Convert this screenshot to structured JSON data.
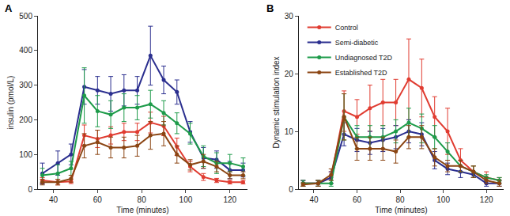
{
  "chart_data": [
    {
      "type": "line",
      "title": "A",
      "x_label": "Time (minutes)",
      "y_label": "insulin (pmol/L)",
      "x": [
        35,
        42,
        48,
        54,
        60,
        66,
        72,
        78,
        84,
        90,
        96,
        102,
        108,
        114,
        120,
        126
      ],
      "xlim": [
        33,
        128
      ],
      "xticks": [
        40,
        60,
        80,
        100,
        120
      ],
      "ylim": [
        0,
        500
      ],
      "yticks": [
        0,
        100,
        200,
        300,
        400,
        500
      ],
      "grid": false,
      "marker": "circle",
      "series": [
        {
          "color": "#e03c31",
          "values": [
            25,
            20,
            22,
            155,
            145,
            155,
            165,
            165,
            192,
            182,
            122,
            65,
            35,
            25,
            20,
            20
          ],
          "error": [
            8,
            8,
            6,
            30,
            25,
            25,
            25,
            25,
            30,
            28,
            25,
            15,
            10,
            6,
            5,
            5
          ]
        },
        {
          "color": "#2b2f8f",
          "values": [
            45,
            75,
            100,
            295,
            285,
            275,
            285,
            285,
            385,
            315,
            280,
            165,
            90,
            85,
            55,
            55
          ],
          "error": [
            30,
            35,
            30,
            50,
            40,
            50,
            45,
            40,
            85,
            40,
            35,
            30,
            30,
            25,
            25,
            20
          ]
        },
        {
          "color": "#1e9b4a",
          "values": [
            40,
            45,
            60,
            270,
            225,
            215,
            235,
            235,
            245,
            220,
            190,
            160,
            95,
            75,
            75,
            65
          ],
          "error": [
            20,
            25,
            20,
            80,
            45,
            40,
            40,
            35,
            40,
            35,
            30,
            30,
            30,
            30,
            25,
            25
          ]
        },
        {
          "color": "#8b4513",
          "values": [
            20,
            20,
            30,
            125,
            135,
            120,
            120,
            125,
            155,
            160,
            100,
            70,
            80,
            65,
            40,
            40
          ],
          "error": [
            8,
            8,
            10,
            35,
            35,
            30,
            30,
            30,
            40,
            35,
            25,
            15,
            20,
            15,
            10,
            10
          ]
        }
      ]
    },
    {
      "type": "line",
      "title": "B",
      "x_label": "Time (minutes)",
      "y_label": "Dynamic stimulation index",
      "x": [
        35,
        42,
        48,
        54,
        60,
        66,
        72,
        78,
        84,
        90,
        96,
        102,
        108,
        114,
        120,
        126
      ],
      "xlim": [
        33,
        128
      ],
      "xticks": [
        40,
        60,
        80,
        100,
        120
      ],
      "ylim": [
        0,
        30
      ],
      "yticks": [
        0,
        10,
        20,
        30
      ],
      "grid": false,
      "marker": "circle",
      "legend": "top left",
      "series": [
        {
          "name": "Control",
          "color": "#e03c31",
          "values": [
            1,
            1,
            2,
            13.5,
            12.5,
            14,
            15,
            15,
            19,
            17.5,
            12.5,
            10,
            5,
            3,
            2,
            1.5
          ],
          "error": [
            0.5,
            0.5,
            1,
            3.5,
            3,
            4,
            4,
            4,
            7,
            5,
            3.5,
            4,
            2,
            1,
            1,
            0.5
          ]
        },
        {
          "name": "Semi-diabetic",
          "color": "#2b2f8f",
          "values": [
            1,
            1,
            2,
            9.5,
            8.5,
            8,
            8.5,
            9,
            10,
            9.5,
            5,
            3.5,
            3,
            2.5,
            1,
            1
          ],
          "error": [
            0.5,
            0.5,
            1,
            2,
            2,
            2,
            2,
            2,
            2,
            2,
            1.5,
            1,
            1,
            0.5,
            0.5,
            0.5
          ]
        },
        {
          "name": "Undiagnosed T2D",
          "color": "#1e9b4a",
          "values": [
            1,
            1,
            1,
            12.5,
            9,
            9,
            9,
            10,
            11.5,
            10.5,
            9,
            6.5,
            4,
            3,
            2,
            1.5
          ],
          "error": [
            0.5,
            0.5,
            0.5,
            4,
            2,
            2,
            2,
            2,
            2.5,
            2.5,
            2,
            1.5,
            1,
            1,
            0.5,
            0.5
          ]
        },
        {
          "name": "Established T2D",
          "color": "#8b4513",
          "values": [
            0.8,
            1,
            2.5,
            12.5,
            7,
            7,
            7,
            6.5,
            9,
            9,
            5.5,
            4,
            4,
            3,
            1.5,
            1
          ],
          "error": [
            0.3,
            0.5,
            1,
            4,
            2,
            2,
            2,
            2,
            2,
            2,
            1.5,
            1,
            1,
            1,
            0.5,
            0.5
          ]
        }
      ]
    }
  ]
}
